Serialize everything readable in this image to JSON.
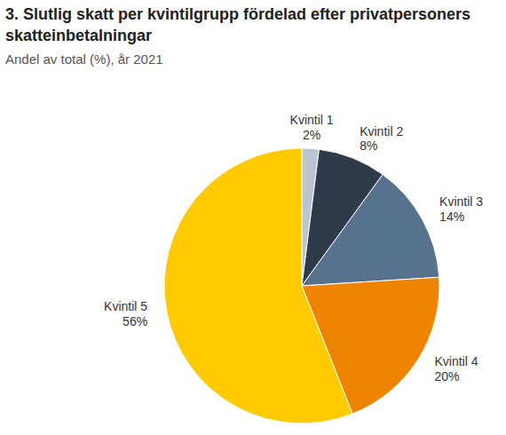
{
  "chart_data": {
    "type": "pie",
    "title": "3. Slutlig skatt per kvintilgrupp fördelad efter privatpersoners skatteinbetalningar",
    "subtitle": "Andel av total (%), år 2021",
    "categories": [
      "Kvintil 1",
      "Kvintil 2",
      "Kvintil 3",
      "Kvintil 4",
      "Kvintil 5"
    ],
    "values": [
      2,
      8,
      14,
      20,
      56
    ],
    "value_labels": [
      "2%",
      "8%",
      "14%",
      "20%",
      "56%"
    ],
    "data_labels": true,
    "colors": [
      "#b9c5d1",
      "#2f3b4a",
      "#56728c",
      "#ee8400",
      "#ffcb00"
    ]
  }
}
